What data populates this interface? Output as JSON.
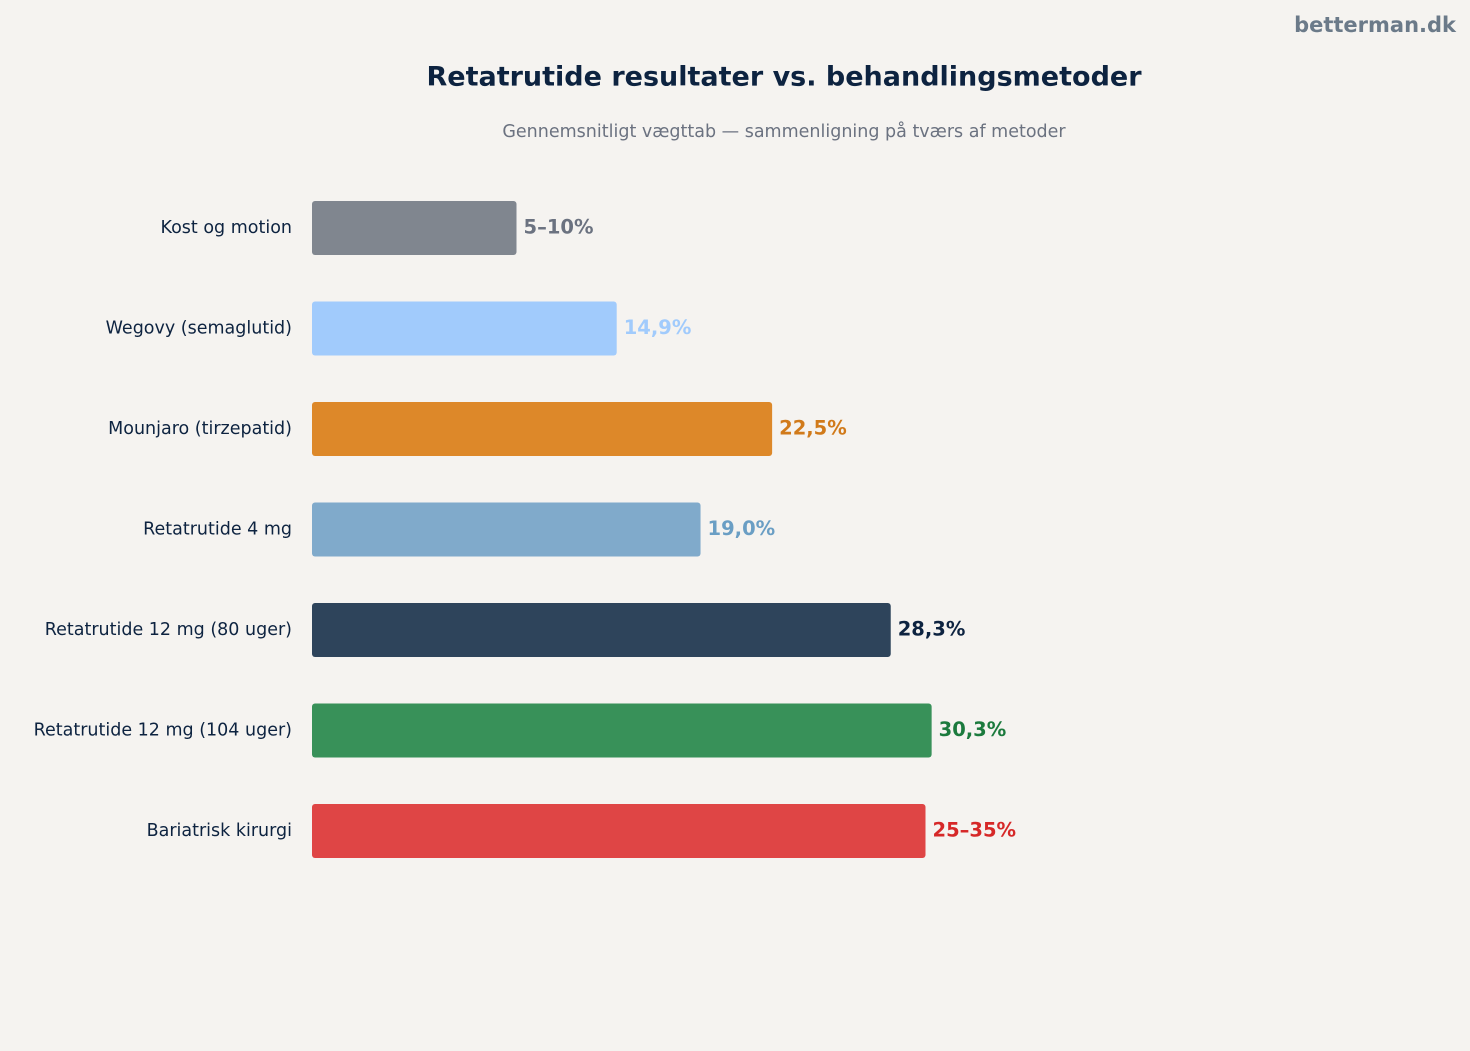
{
  "brand": "betterman.dk",
  "chart_data": {
    "type": "bar",
    "orientation": "horizontal",
    "title": "Retatrutide resultater vs. behandlingsmetoder",
    "subtitle": "Gennemsnitligt vægttab — sammenligning på tværs af metoder",
    "categories": [
      "Kost og motion",
      "Wegovy (semaglutid)",
      "Mounjaro (tirzepatid)",
      "Retatrutide 4 mg",
      "Retatrutide 12 mg (80 uger)",
      "Retatrutide 12 mg (104 uger)",
      "Bariatrisk kirurgi"
    ],
    "values": [
      10,
      14.9,
      22.5,
      19.0,
      28.3,
      30.3,
      30
    ],
    "value_labels": [
      "5–10%",
      "14,9%",
      "22,5%",
      "19,0%",
      "28,3%",
      "30,3%",
      "25–35%"
    ],
    "colors": [
      "#80868f",
      "#a1cbfc",
      "#dd8829",
      "#80aacb",
      "#2e445b",
      "#389159",
      "#df4545"
    ],
    "label_colors": [
      "#6b7280",
      "#a1cbfc",
      "#d17a1a",
      "#6a9ec4",
      "#0d2340",
      "#1b7a3d",
      "#d62828"
    ]
  }
}
